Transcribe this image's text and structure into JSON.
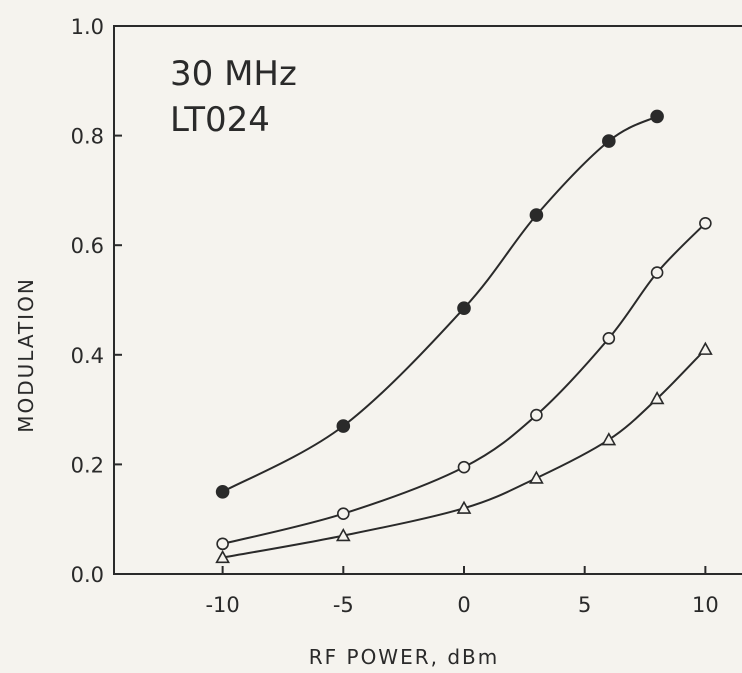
{
  "chart_data": {
    "type": "line",
    "title": "",
    "xlabel": "RF POWER, dBm",
    "ylabel": "MODULATION",
    "xlim": [
      -14.5,
      14.5
    ],
    "ylim": [
      0,
      1.0
    ],
    "xticks": [
      -10,
      -5,
      0,
      5,
      10
    ],
    "xtick_labels": [
      "-10",
      "-5",
      "0",
      "5",
      "10"
    ],
    "yticks": [
      0,
      0.2,
      0.4,
      0.6,
      0.8,
      1.0
    ],
    "ytick_labels": [
      "0.0",
      "0.2",
      "0.4",
      "0.6",
      "0.8",
      "1.0"
    ],
    "annotations": [
      "30 MHz",
      "LT024"
    ],
    "grid": false,
    "legend": "none",
    "series": [
      {
        "marker": "filled-circle",
        "x": [
          -10,
          -5,
          0,
          3,
          6,
          8
        ],
        "y": [
          0.15,
          0.27,
          0.485,
          0.655,
          0.79,
          0.835
        ]
      },
      {
        "marker": "open-circle",
        "x": [
          -10,
          -5,
          0,
          3,
          6,
          8,
          10
        ],
        "y": [
          0.055,
          0.11,
          0.195,
          0.29,
          0.43,
          0.55,
          0.64
        ]
      },
      {
        "marker": "open-triangle",
        "x": [
          -10,
          -5,
          0,
          3,
          6,
          8,
          10
        ],
        "y": [
          0.03,
          0.07,
          0.12,
          0.175,
          0.245,
          0.32,
          0.41
        ]
      }
    ],
    "colors": {
      "ink": "#2a2a2a",
      "background": "#f5f3ee"
    }
  }
}
